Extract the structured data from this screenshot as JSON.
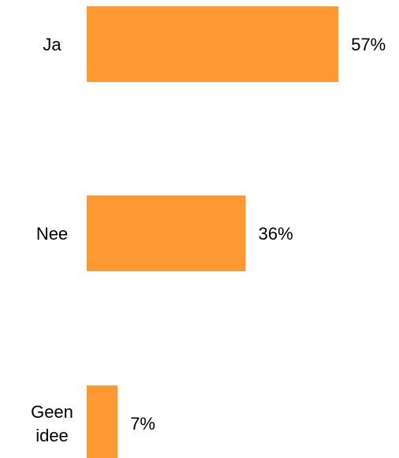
{
  "chart_data": {
    "type": "bar",
    "orientation": "horizontal",
    "categories": [
      "Ja",
      "Nee",
      "Geen idee"
    ],
    "values": [
      57,
      36,
      7
    ],
    "value_labels": [
      "57%",
      "36%",
      "7%"
    ],
    "unit": "%",
    "xlim": [
      0,
      100
    ],
    "grid": false,
    "legend": "none",
    "bar_color": "#FF9933"
  }
}
